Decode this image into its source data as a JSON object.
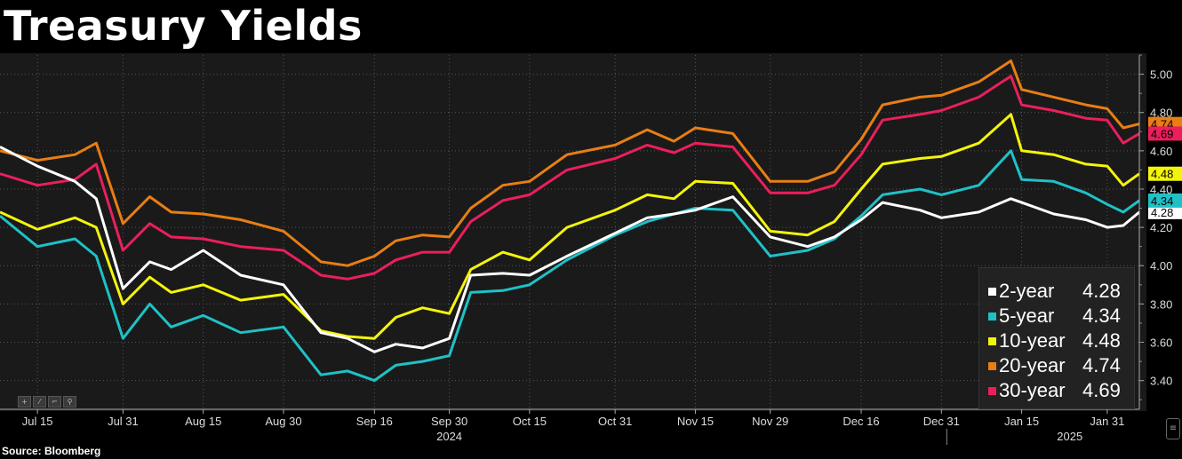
{
  "title": "Treasury Yields",
  "source": "Source: Bloomberg",
  "toolbar": {
    "icons": [
      "move-icon",
      "draw-icon",
      "crop-icon",
      "zoom-icon"
    ]
  },
  "colors": {
    "two_year": "#ffffff",
    "five_year": "#1fc1c6",
    "ten_year": "#f4f40a",
    "twenty_year": "#e87e14",
    "thirty_year": "#ea1f5c"
  },
  "chart_data": {
    "type": "line",
    "title": "Treasury Yields",
    "xlabel": "",
    "ylabel": "",
    "x_range": [
      "2024-07-08",
      "2025-02-06"
    ],
    "ylim": [
      3.25,
      5.1
    ],
    "y_ticks": [
      "3.40",
      "3.60",
      "3.80",
      "4.00",
      "4.20",
      "4.40",
      "4.60",
      "4.80",
      "5.00"
    ],
    "x_tick_labels": [
      {
        "label": "Jul 15",
        "date": "2024-07-15"
      },
      {
        "label": "Jul 31",
        "date": "2024-07-31"
      },
      {
        "label": "Aug 15",
        "date": "2024-08-15"
      },
      {
        "label": "Aug 30",
        "date": "2024-08-30"
      },
      {
        "label": "Sep 16",
        "date": "2024-09-16"
      },
      {
        "label": "Sep 30",
        "date": "2024-09-30"
      },
      {
        "label": "Oct 15",
        "date": "2024-10-15"
      },
      {
        "label": "Oct 31",
        "date": "2024-10-31"
      },
      {
        "label": "Nov 15",
        "date": "2024-11-15"
      },
      {
        "label": "Nov 29",
        "date": "2024-11-29"
      },
      {
        "label": "Dec 16",
        "date": "2024-12-16"
      },
      {
        "label": "Dec 31",
        "date": "2024-12-31"
      },
      {
        "label": "Jan 15",
        "date": "2025-01-15"
      },
      {
        "label": "Jan 31",
        "date": "2025-01-31"
      }
    ],
    "year_labels": [
      {
        "label": "2024",
        "date": "2024-09-30"
      },
      {
        "label": "2025",
        "date": "2025-01-24"
      }
    ],
    "year_divider": "2025-01-01",
    "grid": true,
    "legend_position": "bottom-right",
    "x": [
      "2024-07-08",
      "2024-07-15",
      "2024-07-22",
      "2024-07-26",
      "2024-07-31",
      "2024-08-05",
      "2024-08-09",
      "2024-08-15",
      "2024-08-22",
      "2024-08-30",
      "2024-09-06",
      "2024-09-11",
      "2024-09-16",
      "2024-09-20",
      "2024-09-25",
      "2024-09-30",
      "2024-10-04",
      "2024-10-10",
      "2024-10-15",
      "2024-10-22",
      "2024-10-31",
      "2024-11-06",
      "2024-11-11",
      "2024-11-15",
      "2024-11-22",
      "2024-11-29",
      "2024-12-06",
      "2024-12-11",
      "2024-12-16",
      "2024-12-20",
      "2024-12-27",
      "2024-12-31",
      "2025-01-07",
      "2025-01-13",
      "2025-01-15",
      "2025-01-21",
      "2025-01-27",
      "2025-01-31",
      "2025-02-03",
      "2025-02-06"
    ],
    "series": [
      {
        "name": "2-year",
        "key": "two_year",
        "last": "4.28",
        "values": [
          4.62,
          4.52,
          4.44,
          4.35,
          3.88,
          4.02,
          3.98,
          4.08,
          3.95,
          3.9,
          3.65,
          3.62,
          3.55,
          3.59,
          3.57,
          3.62,
          3.95,
          3.96,
          3.95,
          4.05,
          4.17,
          4.25,
          4.27,
          4.29,
          4.36,
          4.15,
          4.1,
          4.15,
          4.24,
          4.33,
          4.29,
          4.25,
          4.28,
          4.35,
          4.33,
          4.27,
          4.24,
          4.2,
          4.21,
          4.28
        ]
      },
      {
        "name": "5-year",
        "key": "five_year",
        "last": "4.34",
        "values": [
          4.26,
          4.1,
          4.14,
          4.05,
          3.62,
          3.8,
          3.68,
          3.74,
          3.65,
          3.68,
          3.43,
          3.45,
          3.4,
          3.48,
          3.5,
          3.53,
          3.86,
          3.87,
          3.9,
          4.03,
          4.16,
          4.23,
          4.27,
          4.3,
          4.29,
          4.05,
          4.08,
          4.14,
          4.26,
          4.37,
          4.4,
          4.37,
          4.42,
          4.6,
          4.45,
          4.44,
          4.38,
          4.32,
          4.28,
          4.34
        ]
      },
      {
        "name": "10-year",
        "key": "ten_year",
        "last": "4.48",
        "values": [
          4.28,
          4.19,
          4.25,
          4.2,
          3.8,
          3.94,
          3.86,
          3.9,
          3.82,
          3.85,
          3.66,
          3.63,
          3.62,
          3.73,
          3.78,
          3.75,
          3.98,
          4.07,
          4.03,
          4.2,
          4.29,
          4.37,
          4.35,
          4.44,
          4.43,
          4.18,
          4.16,
          4.23,
          4.4,
          4.53,
          4.56,
          4.57,
          4.64,
          4.79,
          4.6,
          4.58,
          4.53,
          4.52,
          4.42,
          4.48
        ]
      },
      {
        "name": "20-year",
        "key": "twenty_year",
        "last": "4.74",
        "values": [
          4.6,
          4.55,
          4.58,
          4.64,
          4.22,
          4.36,
          4.28,
          4.27,
          4.24,
          4.18,
          4.02,
          4.0,
          4.05,
          4.13,
          4.16,
          4.15,
          4.3,
          4.42,
          4.44,
          4.58,
          4.63,
          4.71,
          4.65,
          4.72,
          4.69,
          4.44,
          4.44,
          4.49,
          4.66,
          4.84,
          4.88,
          4.89,
          4.96,
          5.07,
          4.92,
          4.88,
          4.84,
          4.82,
          4.72,
          4.74
        ]
      },
      {
        "name": "30-year",
        "key": "thirty_year",
        "last": "4.69",
        "values": [
          4.48,
          4.42,
          4.45,
          4.53,
          4.08,
          4.22,
          4.15,
          4.14,
          4.1,
          4.08,
          3.95,
          3.93,
          3.96,
          4.03,
          4.07,
          4.07,
          4.23,
          4.34,
          4.37,
          4.5,
          4.56,
          4.63,
          4.59,
          4.64,
          4.62,
          4.38,
          4.38,
          4.42,
          4.58,
          4.76,
          4.79,
          4.81,
          4.88,
          4.99,
          4.84,
          4.81,
          4.77,
          4.76,
          4.64,
          4.69
        ]
      }
    ]
  }
}
